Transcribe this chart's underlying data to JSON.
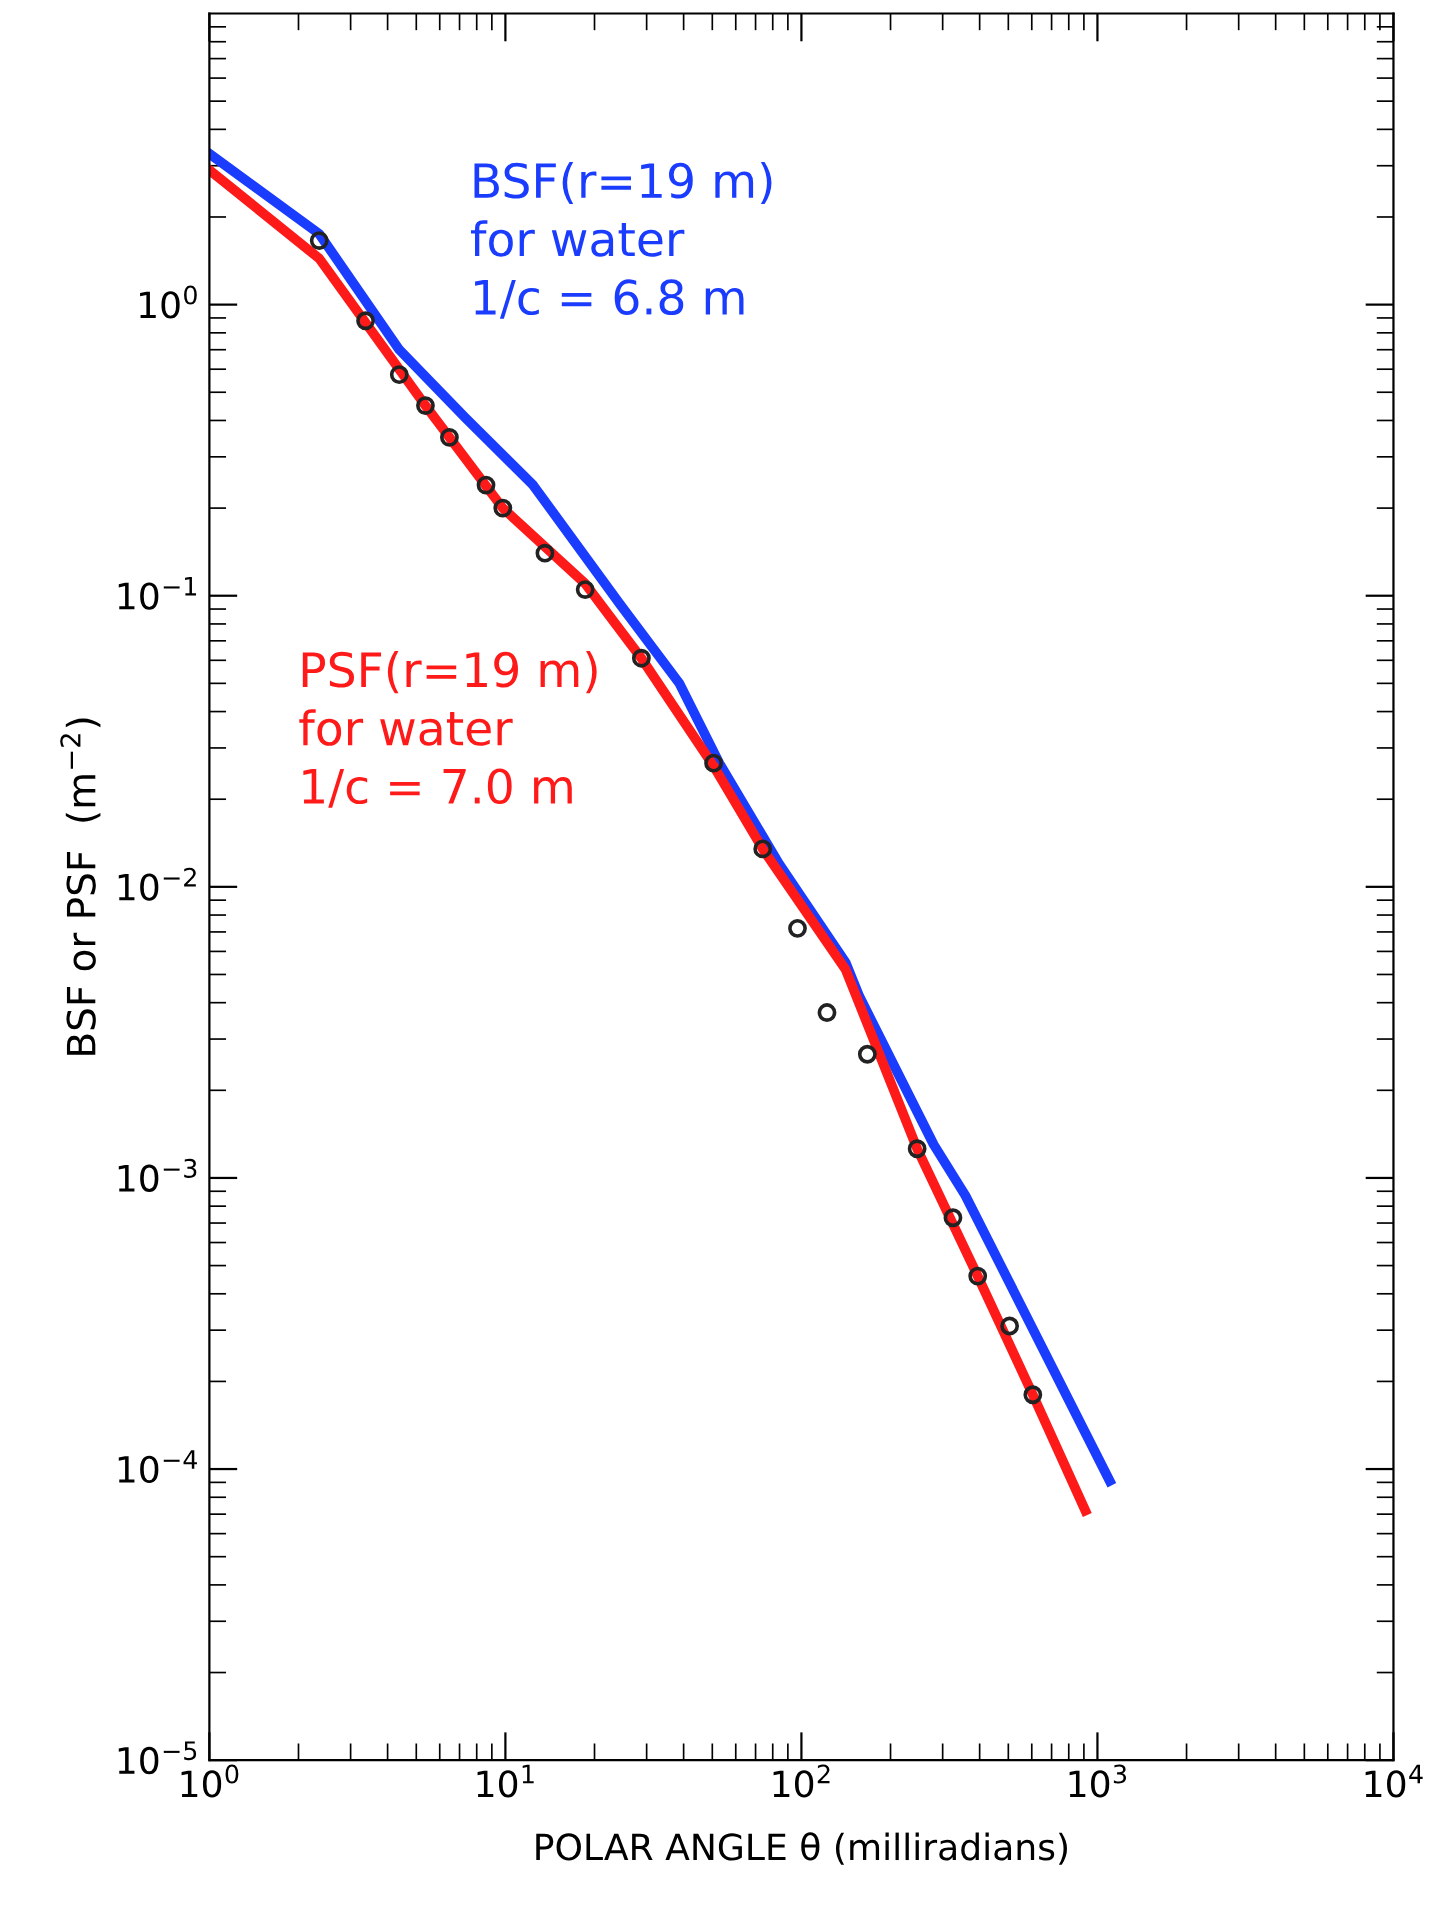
{
  "chart_data": {
    "type": "line",
    "xlabel": "POLAR ANGLE θ (milliradians)",
    "ylabel": "BSF or PSF  (m$^{−2}$)",
    "log": "xy",
    "xlim": [
      1,
      10000
    ],
    "ylim": [
      1e-05,
      10
    ],
    "xticks": [
      {
        "value": 1,
        "label": "10$^{0}$"
      },
      {
        "value": 10,
        "label": "10$^{1}$"
      },
      {
        "value": 100,
        "label": "10$^{2}$"
      },
      {
        "value": 1000,
        "label": "10$^{3}$"
      },
      {
        "value": 10000,
        "label": "10$^{4}$"
      }
    ],
    "yticks": [
      {
        "value": 1e-05,
        "label": "10$^{−5}$"
      },
      {
        "value": 0.0001,
        "label": "10$^{−4}$"
      },
      {
        "value": 0.001,
        "label": "10$^{−3}$"
      },
      {
        "value": 0.01,
        "label": "10$^{−2}$"
      },
      {
        "value": 0.1,
        "label": "10$^{−1}$"
      },
      {
        "value": 1,
        "label": "10$^{0}$"
      }
    ],
    "grid": false,
    "legend": false,
    "series": [
      {
        "name": "BSF(r=19 m)\nfor water\n1/c = 6.8 m",
        "color": "#1a3cff",
        "marker": "none",
        "line_style": "solid",
        "x": [
          1,
          2.35,
          4.38,
          7.3,
          12.4,
          24.3,
          38.7,
          52.8,
          84,
          141,
          157,
          280,
          358,
          1100
        ],
        "values": [
          3.3,
          1.75,
          0.7,
          0.41,
          0.24,
          0.094,
          0.05,
          0.0266,
          0.012,
          0.0055,
          0.0042,
          0.0013,
          0.00087,
          9.1e-05
        ]
      },
      {
        "name": "PSF(r=19 m)\nfor water\n1/c = 7.0 m",
        "color": "#ff1a1a",
        "marker": "none",
        "line_style": "solid",
        "x": [
          1,
          2.35,
          5.37,
          9.8,
          18.6,
          28.8,
          50.5,
          74,
          141,
          246,
          394,
          605,
          910
        ],
        "values": [
          2.9,
          1.44,
          0.45,
          0.2,
          0.11,
          0.061,
          0.026,
          0.0135,
          0.0052,
          0.00126,
          0.00046,
          0.00018,
          7.2e-05
        ]
      },
      {
        "type": "scatter",
        "color": "#222222",
        "marker": "circle",
        "x": [
          2.35,
          3.37,
          4.38,
          5.37,
          6.47,
          8.6,
          9.8,
          13.6,
          18.6,
          28.8,
          50.5,
          74,
          97,
          122,
          167,
          246,
          325,
          394,
          505,
          605
        ],
        "values": [
          1.66,
          0.88,
          0.575,
          0.45,
          0.35,
          0.24,
          0.2,
          0.14,
          0.105,
          0.061,
          0.0266,
          0.0135,
          0.0072,
          0.0037,
          0.00266,
          0.00126,
          0.00073,
          0.00046,
          0.00031,
          0.00018
        ]
      }
    ]
  }
}
